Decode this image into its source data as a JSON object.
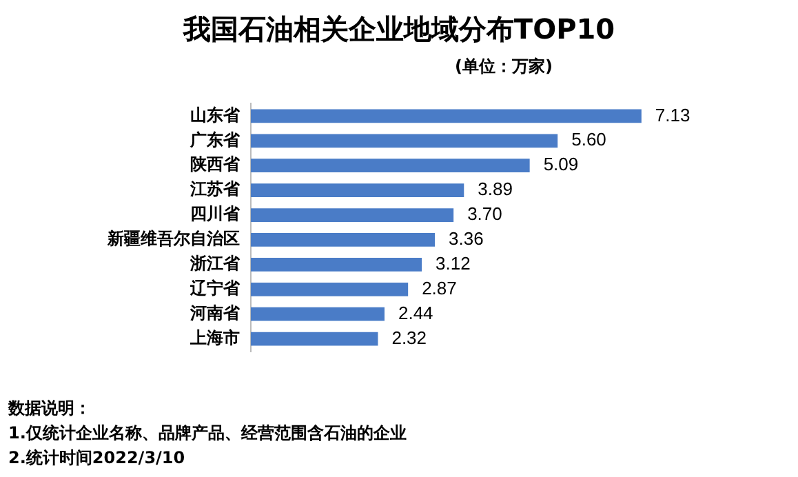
{
  "chart_data": {
    "type": "bar",
    "orientation": "horizontal",
    "title": "我国石油相关企业地域分布TOP10",
    "subtitle": "(单位：万家)",
    "categories": [
      "山东省",
      "广东省",
      "陕西省",
      "江苏省",
      "四川省",
      "新疆维吾尔自治区",
      "浙江省",
      "辽宁省",
      "河南省",
      "上海市"
    ],
    "values": [
      7.13,
      5.6,
      5.09,
      3.89,
      3.7,
      3.36,
      3.12,
      2.87,
      2.44,
      2.32
    ],
    "value_labels": [
      "7.13",
      "5.60",
      "5.09",
      "3.89",
      "3.70",
      "3.36",
      "3.12",
      "2.87",
      "2.44",
      "2.32"
    ],
    "color": "#4a7cc7",
    "tick_labels": "y",
    "annotations": [
      "数据说明：",
      "1.仅统计企业名称、品牌产品、经营范围含石油的企业",
      "2.统计时间2022/3/10"
    ]
  }
}
